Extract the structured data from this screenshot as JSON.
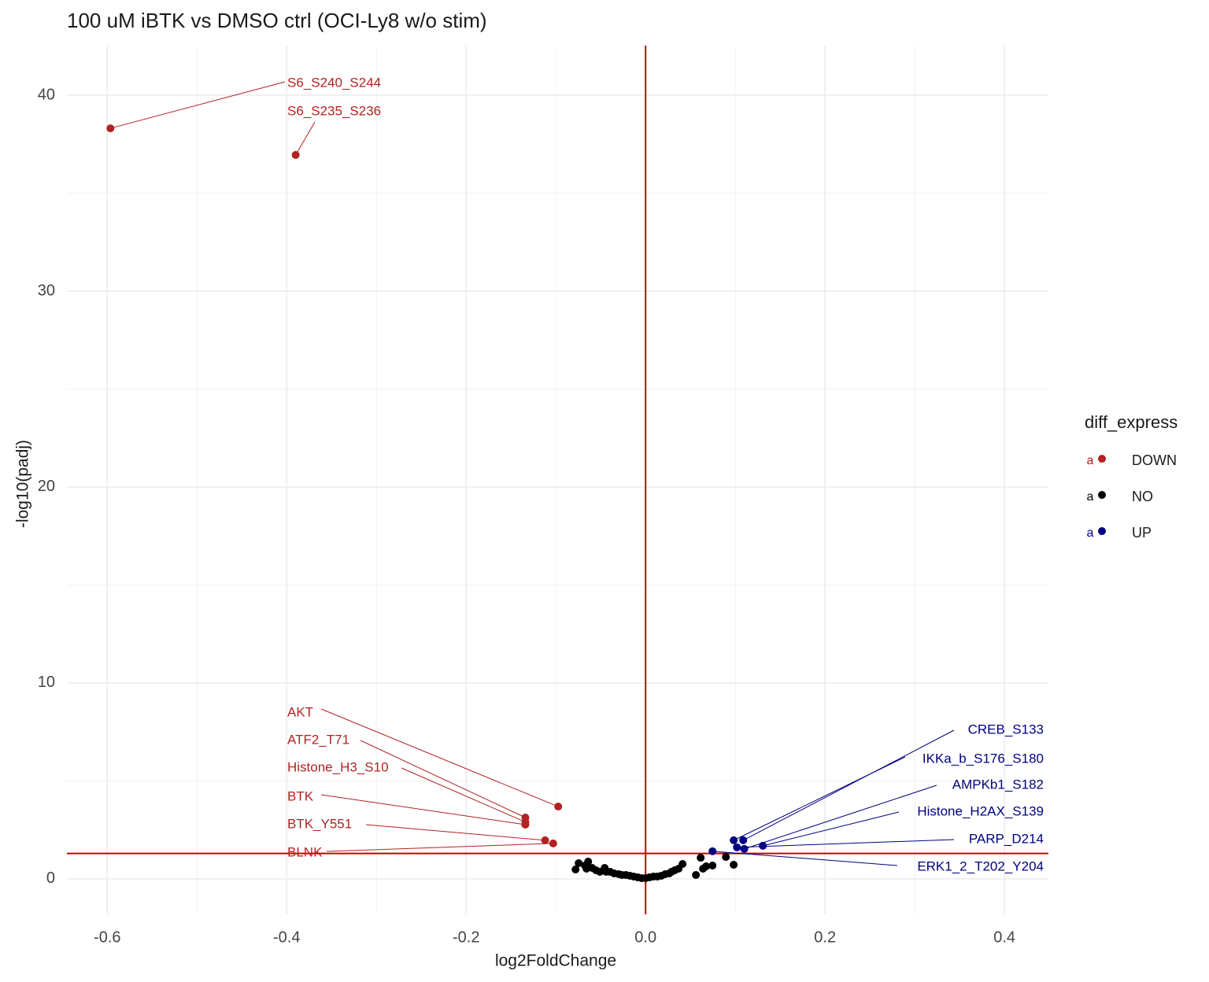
{
  "chart_data": {
    "type": "scatter",
    "title": "100 uM iBTK vs DMSO ctrl (OCI-Ly8 w/o stim)",
    "x_label": "log2FoldChange",
    "y_label": "-log10(padj)",
    "xlim": [
      -0.645,
      0.449
    ],
    "ylim": [
      -1.81,
      42.53
    ],
    "xticks": [
      -0.6,
      -0.4,
      -0.2,
      {
        "value": 0,
        "label": "0.0"
      },
      0.2,
      0.4
    ],
    "yticks": [
      0,
      10,
      20,
      30,
      40
    ],
    "minor_xticks": [
      -0.5,
      -0.3,
      -0.1,
      0.1,
      0.3
    ],
    "minor_yticks": [
      5,
      15,
      25,
      35
    ],
    "grid": true,
    "vlines": [
      0
    ],
    "hlines": [
      1.3
    ],
    "ref_line_color": "#cc0000",
    "legend_title": "diff_express",
    "legend_key_text": "a",
    "legend_position": "right",
    "series": [
      {
        "name": "DOWN",
        "color": "#b22222",
        "x": [
          -0.5965,
          -0.39,
          -0.0974,
          -0.134,
          -0.134,
          -0.134,
          -0.112,
          -0.103
        ],
        "y": [
          38.31,
          36.95,
          3.69,
          3.13,
          2.9,
          2.77,
          1.97,
          1.81
        ],
        "labels": [
          "S6_S240_S244",
          "S6_S235_S236",
          "AKT",
          "ATF2_T71",
          "Histone_H3_S10",
          "BTK",
          "BTK_Y551",
          "BLNK"
        ]
      },
      {
        "name": "NO",
        "color": "#000000",
        "x": [
          -0.0781,
          -0.0746,
          -0.0675,
          -0.064,
          -0.0658,
          -0.0596,
          -0.0553,
          -0.0509,
          -0.0456,
          -0.0439,
          -0.0395,
          -0.0351,
          -0.0298,
          -0.0263,
          -0.0219,
          -0.0175,
          -0.0132,
          -0.0088,
          -0.0044,
          0.0,
          0.0044,
          0.0088,
          0.0132,
          0.0175,
          0.0219,
          0.0263,
          0.0289,
          0.0325,
          0.0368,
          0.0412,
          0.0561,
          0.0614,
          0.064,
          0.0675,
          0.0746,
          0.0895,
          0.0982
        ],
        "y": [
          0.48,
          0.8,
          0.68,
          0.88,
          0.52,
          0.56,
          0.44,
          0.36,
          0.56,
          0.36,
          0.36,
          0.28,
          0.24,
          0.2,
          0.2,
          0.16,
          0.12,
          0.08,
          0.04,
          0.04,
          0.08,
          0.12,
          0.12,
          0.16,
          0.24,
          0.28,
          0.36,
          0.44,
          0.52,
          0.76,
          0.2,
          1.08,
          0.52,
          0.64,
          0.68,
          1.12,
          0.72
        ]
      },
      {
        "name": "UP",
        "color": "#000080",
        "x": [
          0.1088,
          0.0982,
          0.11,
          0.1307,
          0.1018,
          0.0746
        ],
        "y": [
          1.97,
          1.97,
          1.53,
          1.69,
          1.61,
          1.41
        ],
        "labels": [
          "CREB_S133",
          "IKKa_b_S176_S180",
          "AMPKb1_S182",
          "Histone_H2AX_S139",
          "PARP_D214",
          "ERK1_2_T202_Y204"
        ]
      }
    ]
  }
}
